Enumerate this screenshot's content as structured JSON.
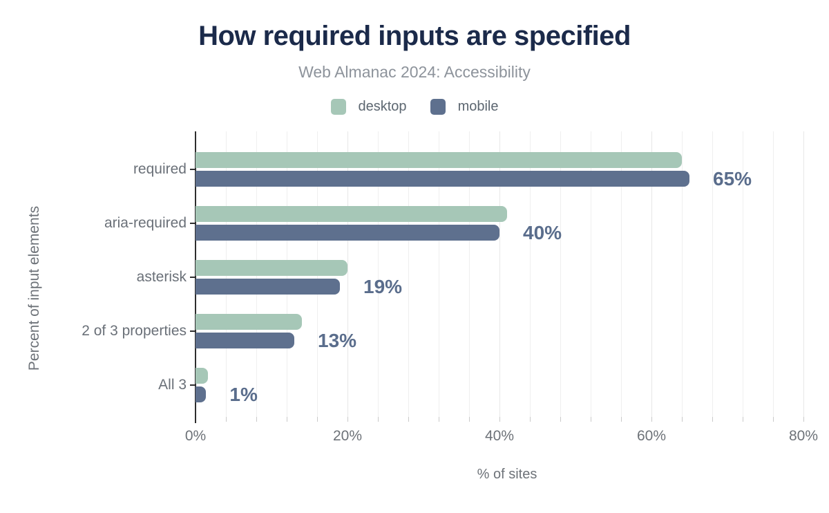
{
  "chart_data": {
    "type": "bar",
    "orientation": "horizontal",
    "title": "How required inputs are specified",
    "subtitle": "Web Almanac 2024: Accessibility",
    "categories": [
      "required",
      "aria-required",
      "asterisk",
      "2 of 3 properties",
      "All 3"
    ],
    "series": [
      {
        "name": "desktop",
        "color": "#a6c7b7",
        "values": [
          64,
          41,
          20,
          14,
          1.6
        ]
      },
      {
        "name": "mobile",
        "color": "#5e708e",
        "values": [
          65,
          40,
          19,
          13,
          1.4
        ]
      }
    ],
    "annotations": [
      "65%",
      "40%",
      "19%",
      "13%",
      "1%"
    ],
    "annotation_series": "mobile",
    "xlabel": "% of sites",
    "ylabel": "Percent of input elements",
    "xlim": [
      0,
      82
    ],
    "x_ticks": [
      "0%",
      "20%",
      "40%",
      "60%",
      "80%"
    ],
    "x_tick_values": [
      0,
      20,
      40,
      60,
      80
    ],
    "minor_grid_step": 4,
    "grid": true,
    "legend_position": "top",
    "colors": {
      "title": "#1b2a4a",
      "subtitle": "#8d939b",
      "axis_text": "#6d7278",
      "value_label": "#5a6d8c",
      "axis_line": "#2e2e2e"
    }
  }
}
